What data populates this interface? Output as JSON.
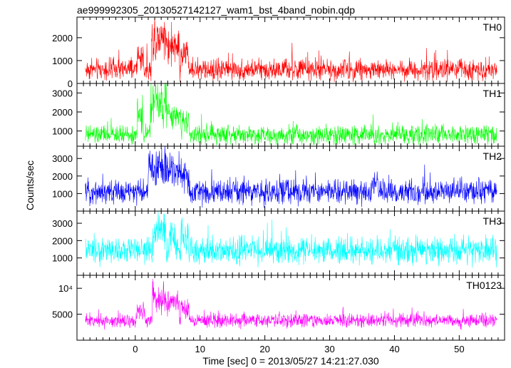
{
  "title": "ae999992305_20130527142127_wam1_bst_4band_nobin.qdp",
  "xlabel": "Time [sec] 0 = 2013/05/27 14:21:27.030",
  "ylabel": "Counts/sec",
  "colors": {
    "frame": "#000000",
    "background": "#ffffff"
  },
  "chart_data": [
    {
      "type": "line",
      "name": "TH0",
      "color": "#ff0000",
      "xlim": [
        -9,
        57
      ],
      "ylim": [
        0,
        2900
      ],
      "yticks": [
        0,
        1000,
        2000
      ],
      "ytick_labels": [
        "0",
        "1000",
        "2000"
      ],
      "baseline": 600,
      "noise": 230,
      "spike_prob": 0.02,
      "spike_amp": 900,
      "burst": [
        [
          0.3,
          1.3,
          800
        ],
        [
          2.5,
          4.8,
          1700
        ],
        [
          4.8,
          6.8,
          1300
        ],
        [
          7.0,
          8.3,
          800
        ]
      ],
      "x_range": [
        -7.7,
        55.8
      ]
    },
    {
      "type": "line",
      "name": "TH1",
      "color": "#00ff00",
      "xlim": [
        -9,
        57
      ],
      "ylim": [
        200,
        3500
      ],
      "yticks": [
        1000,
        2000,
        3000
      ],
      "ytick_labels": [
        "1000",
        "2000",
        "3000"
      ],
      "baseline": 800,
      "noise": 250,
      "spike_prob": 0.02,
      "spike_amp": 1000,
      "burst": [
        [
          0.3,
          1.2,
          1300
        ],
        [
          2.3,
          4.8,
          2100
        ],
        [
          4.8,
          7.0,
          1300
        ],
        [
          7.2,
          8.3,
          1000
        ]
      ],
      "x_range": [
        -7.7,
        55.8
      ]
    },
    {
      "type": "line",
      "name": "TH2",
      "color": "#0000ff",
      "xlim": [
        -9,
        57
      ],
      "ylim": [
        0,
        3700
      ],
      "yticks": [
        1000,
        2000,
        3000
      ],
      "ytick_labels": [
        "1000",
        "2000",
        "3000"
      ],
      "baseline": 1100,
      "noise": 330,
      "spike_prob": 0.03,
      "spike_amp": 1000,
      "burst": [
        [
          2.0,
          4.8,
          1700
        ],
        [
          4.8,
          7.2,
          1500
        ],
        [
          7.2,
          8.3,
          1000
        ],
        [
          36.5,
          37.5,
          700
        ]
      ],
      "x_range": [
        -7.7,
        55.8
      ]
    },
    {
      "type": "line",
      "name": "TH3",
      "color": "#00ffff",
      "xlim": [
        -9,
        57
      ],
      "ylim": [
        0,
        3700
      ],
      "yticks": [
        1000,
        2000,
        3000
      ],
      "ytick_labels": [
        "1000",
        "2000",
        "3000"
      ],
      "baseline": 1400,
      "noise": 380,
      "spike_prob": 0.04,
      "spike_amp": 1200,
      "burst": [
        [
          2.8,
          4.8,
          1400
        ],
        [
          5.2,
          6.2,
          1100
        ],
        [
          7.0,
          8.2,
          1000
        ]
      ],
      "x_range": [
        -7.7,
        55.8
      ]
    },
    {
      "type": "line",
      "name": "TH0123",
      "color": "#ff00ff",
      "xlim": [
        -9,
        57
      ],
      "ylim": [
        0,
        12500
      ],
      "yticks": [
        5000,
        10000
      ],
      "ytick_labels": [
        "5000",
        "10⁴"
      ],
      "baseline": 3800,
      "noise": 650,
      "spike_prob": 0.02,
      "spike_amp": 2200,
      "burst": [
        [
          0.3,
          1.5,
          2200
        ],
        [
          2.6,
          4.8,
          5500
        ],
        [
          4.8,
          6.8,
          4200
        ],
        [
          7.0,
          8.3,
          2500
        ]
      ],
      "x_range": [
        -7.7,
        55.8
      ]
    }
  ],
  "xaxis": {
    "ticks": [
      0,
      10,
      20,
      30,
      40,
      50
    ],
    "tick_labels": [
      "0",
      "10",
      "20",
      "30",
      "40",
      "50"
    ]
  }
}
